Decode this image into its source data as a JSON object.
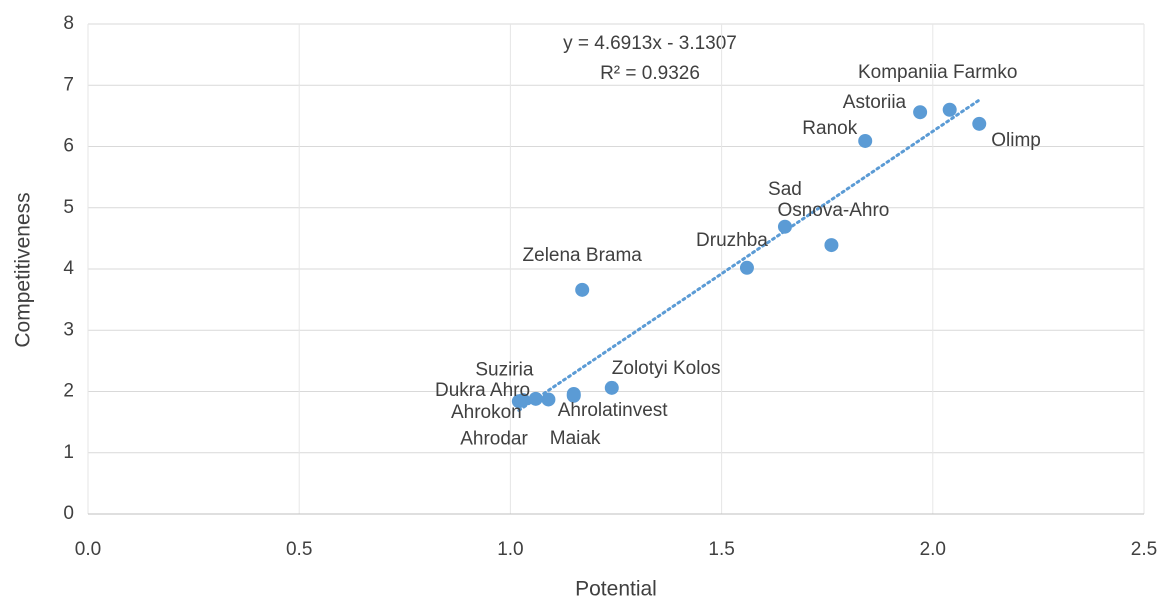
{
  "chart_data": {
    "type": "scatter",
    "x_label": "Potential",
    "y_label": "Competitiveness",
    "trendline": {
      "equation": "y = 4.6913x - 3.1307",
      "r_squared": "R² = 0.9326"
    },
    "color": "#5b9bd5",
    "labels": [
      "Zelena Brama",
      "Druzhba",
      "Sad",
      "Osnova-Ahro",
      "Ranok",
      "Astoriia",
      "Kompaniia Farmko",
      "Olimp",
      "Zolotyi Kolos",
      "Suziria",
      "Dukra Ahro",
      "Ahrokon",
      "Ahrodar",
      "Maiak",
      "Ahrolatinvest"
    ],
    "x": [
      1.17,
      1.56,
      1.65,
      1.76,
      1.84,
      1.97,
      2.04,
      2.11,
      1.24,
      1.09,
      1.03,
      1.06,
      1.02,
      1.15,
      1.15
    ],
    "y": [
      3.66,
      4.02,
      4.69,
      4.39,
      6.09,
      6.56,
      6.6,
      6.37,
      2.06,
      1.87,
      1.86,
      1.88,
      1.84,
      1.93,
      1.96
    ],
    "xlim": [
      0,
      2.5
    ],
    "ylim": [
      0,
      8
    ],
    "xticks": [
      {
        "value": 0,
        "label": "0.0"
      },
      0.5,
      {
        "value": 1,
        "label": "1.0"
      },
      1.5,
      {
        "value": 2,
        "label": "2.0"
      },
      2.5
    ],
    "yticks": [
      0,
      1,
      2,
      3,
      4,
      5,
      6,
      7,
      8
    ],
    "grid": true
  }
}
